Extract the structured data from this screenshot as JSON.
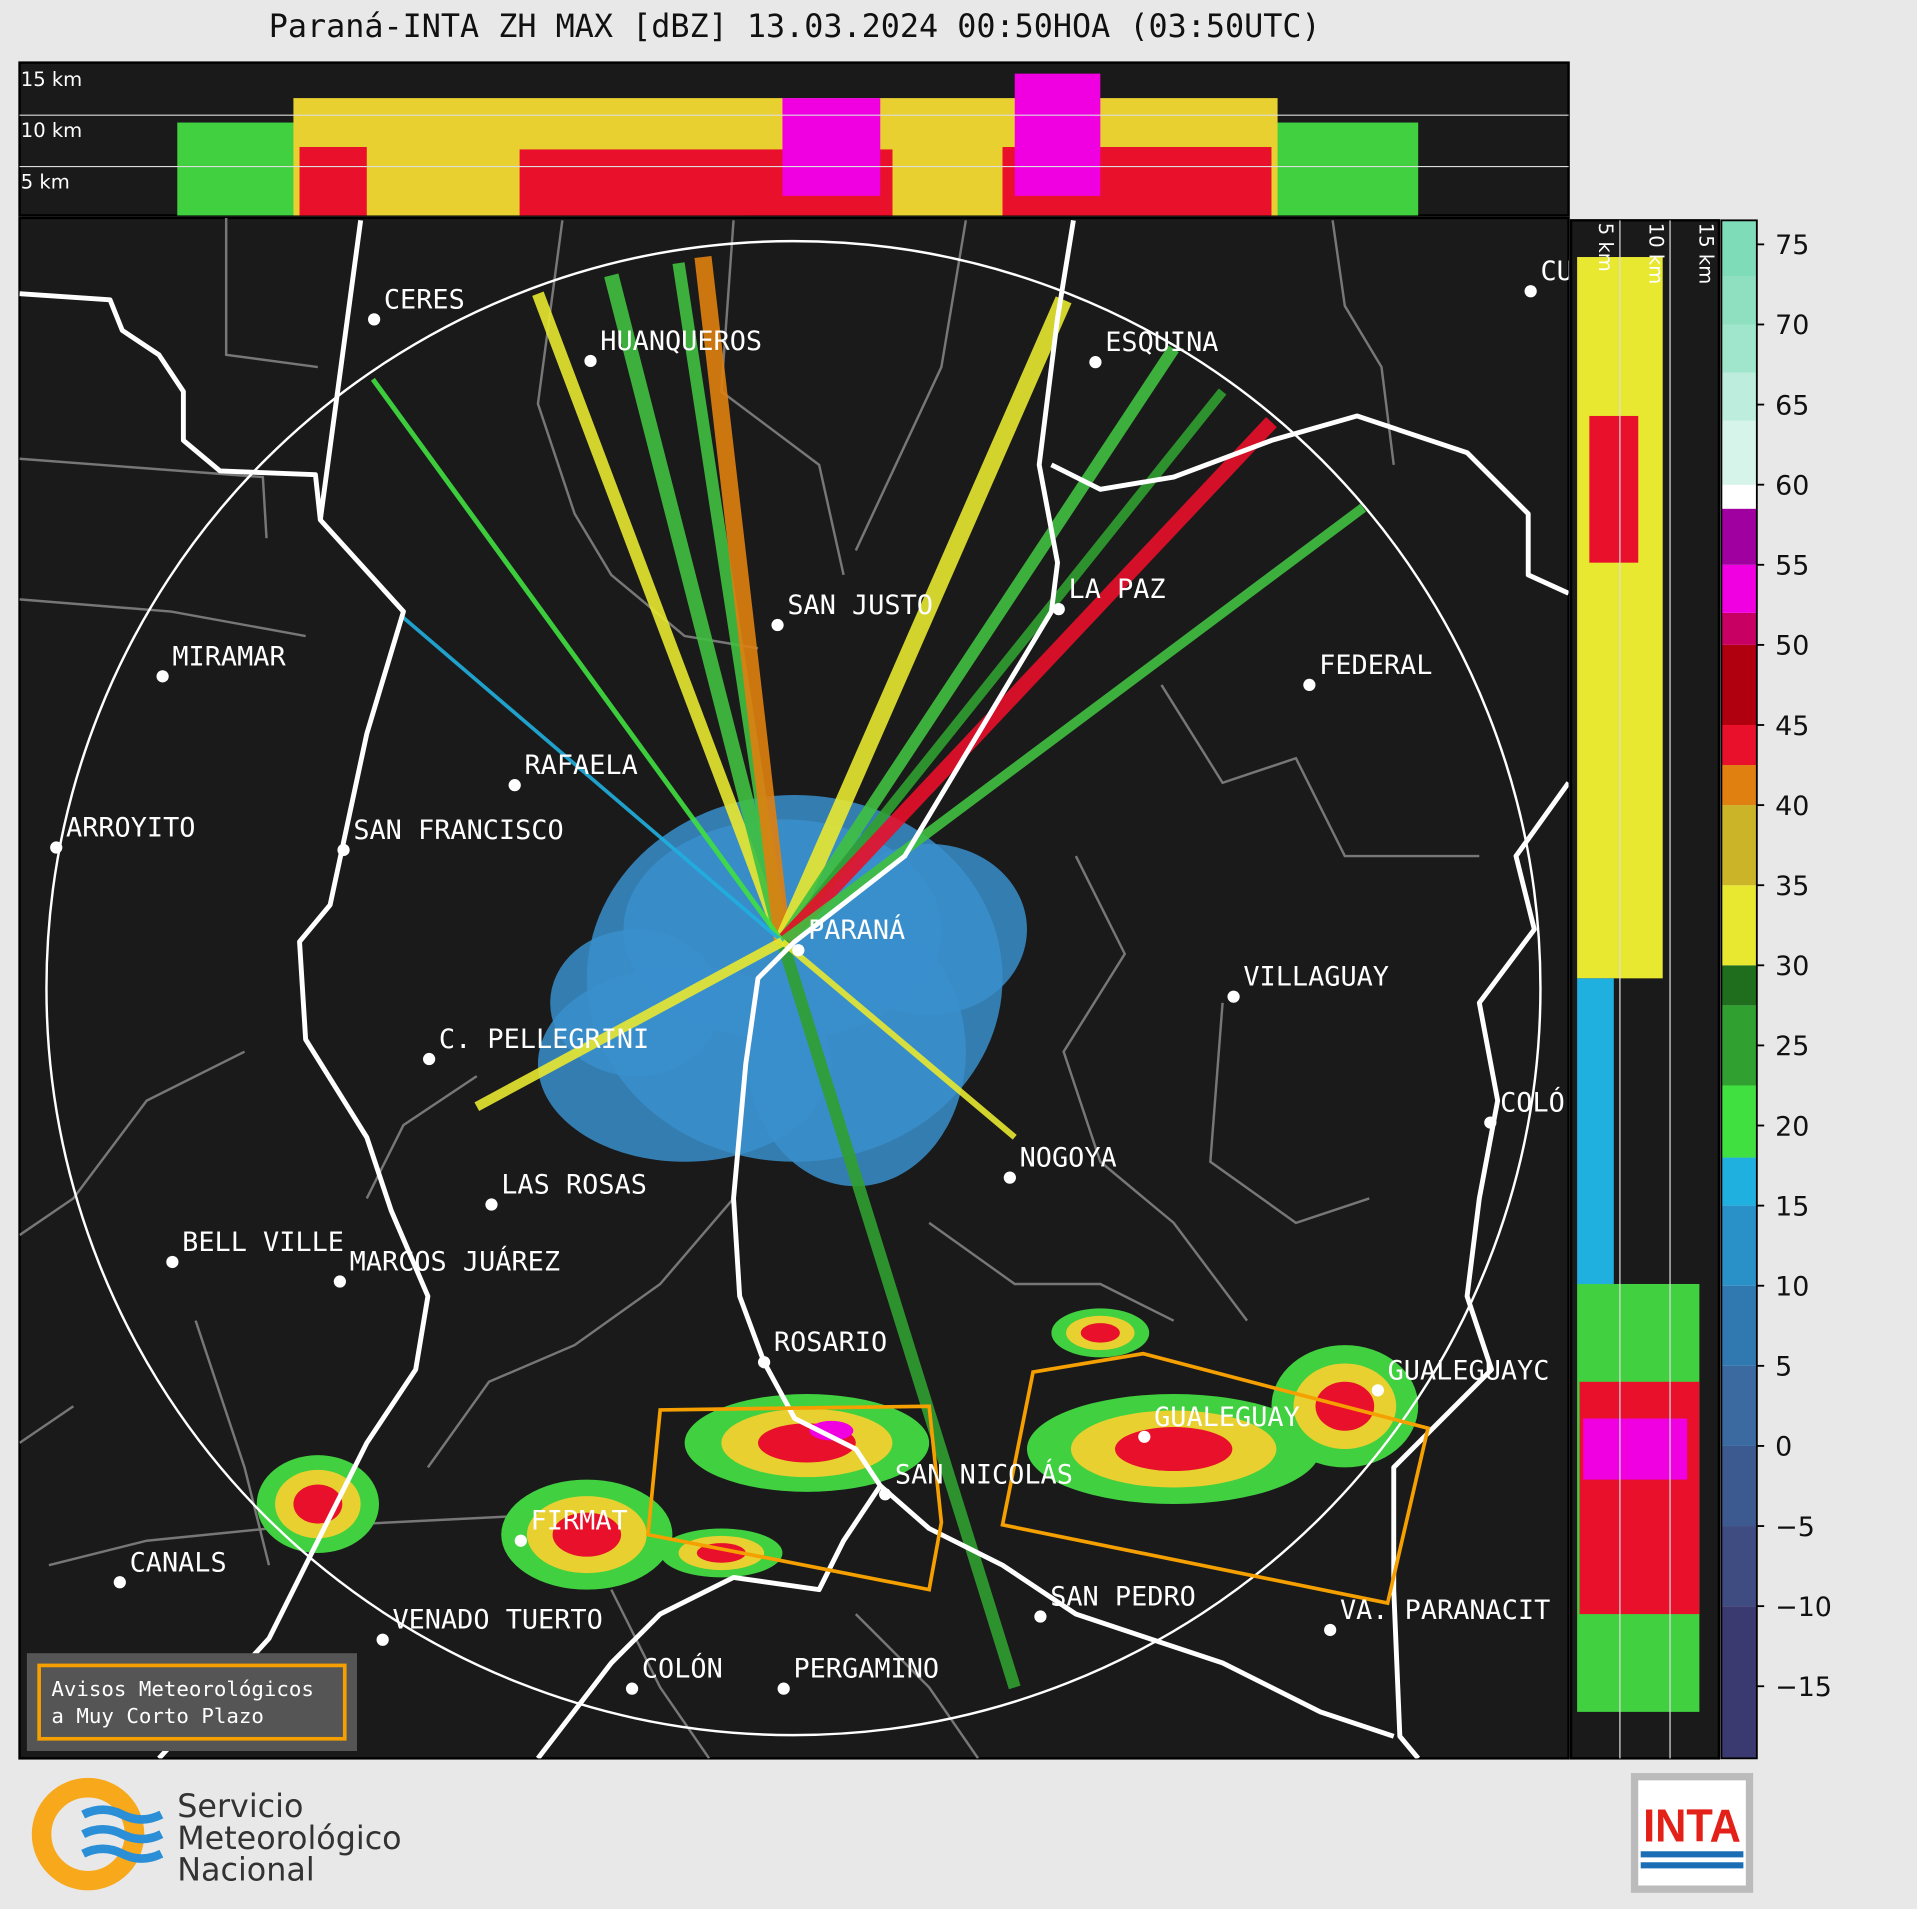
{
  "header": {
    "title": "Paraná-INTA ZH MAX [dBZ] 13.03.2024 00:50HOA (03:50UTC)"
  },
  "top_profile": {
    "height_labels": [
      "15 km",
      "10 km",
      "5 km"
    ]
  },
  "side_profile": {
    "height_labels": [
      "5 km",
      "10 km",
      "15 km"
    ]
  },
  "map": {
    "cities": [
      "CERES",
      "HUANQUEROS",
      "ESQUINA",
      "CU",
      "SAN JUSTO",
      "LA PAZ",
      "MIRAMAR",
      "FEDERAL",
      "RAFAELA",
      "ARROYITO",
      "SAN FRANCISCO",
      "PARANÁ",
      "VILLAGUAY",
      "C. PELLEGRINI",
      "COLÓ",
      "NOGOYA",
      "LAS ROSAS",
      "BELL VILLE",
      "MARCOS JUÁREZ",
      "ROSARIO",
      "GUALEGUAYC",
      "GUALEGUAY",
      "SAN NICOLÁS",
      "FIRMAT",
      "CANALS",
      "SAN PEDRO",
      "VA. PARANACIT",
      "VENADO TUERTO",
      "COLÓN",
      "PERGAMINO"
    ]
  },
  "colorbar": {
    "lim": [
      -19.5,
      76.5
    ],
    "ticks": [
      {
        "value": -15,
        "label": "−15"
      },
      {
        "value": -10,
        "label": "−10"
      },
      {
        "value": -5,
        "label": "−5"
      },
      0,
      5,
      10,
      15,
      20,
      25,
      30,
      35,
      40,
      45,
      50,
      55,
      60,
      65,
      70,
      75
    ],
    "segments": [
      {
        "from": -19.5,
        "to": -10,
        "color": "#3a3a70"
      },
      {
        "from": -10,
        "to": -5,
        "color": "#3f4c82"
      },
      {
        "from": -5,
        "to": 0,
        "color": "#3c5a90"
      },
      {
        "from": 0,
        "to": 5,
        "color": "#3a6aa0"
      },
      {
        "from": 5,
        "to": 10,
        "color": "#3078b0"
      },
      {
        "from": 10,
        "to": 15,
        "color": "#2a90c8"
      },
      {
        "from": 15,
        "to": 18,
        "color": "#20b0e0"
      },
      {
        "from": 18,
        "to": 22.5,
        "color": "#40e040"
      },
      {
        "from": 22.5,
        "to": 27.5,
        "color": "#30a030"
      },
      {
        "from": 27.5,
        "to": 30,
        "color": "#1e6e1e"
      },
      {
        "from": 30,
        "to": 35,
        "color": "#e8e830"
      },
      {
        "from": 35,
        "to": 40,
        "color": "#ccb428"
      },
      {
        "from": 40,
        "to": 42.5,
        "color": "#e08010"
      },
      {
        "from": 42.5,
        "to": 45,
        "color": "#e8102a"
      },
      {
        "from": 45,
        "to": 50,
        "color": "#b00010"
      },
      {
        "from": 50,
        "to": 52,
        "color": "#c80064"
      },
      {
        "from": 52,
        "to": 55,
        "color": "#f000e0"
      },
      {
        "from": 55,
        "to": 58.5,
        "color": "#a000a0"
      },
      {
        "from": 58.5,
        "to": 60,
        "color": "#ffffff"
      },
      {
        "from": 60,
        "to": 64,
        "color": "#d6f4ea"
      },
      {
        "from": 64,
        "to": 67,
        "color": "#bdeedd"
      },
      {
        "from": 67,
        "to": 70,
        "color": "#a0e6cc"
      },
      {
        "from": 70,
        "to": 73,
        "color": "#8fe0c0"
      },
      {
        "from": 73,
        "to": 76.5,
        "color": "#7fdcb8"
      }
    ]
  },
  "warning_box": {
    "lines": [
      "Avisos Meteorológicos",
      "a Muy Corto Plazo"
    ]
  },
  "footer": {
    "smn_lines": [
      "Servicio",
      "Meteorológico",
      "Nacional"
    ],
    "inta_logo": "INTA"
  }
}
